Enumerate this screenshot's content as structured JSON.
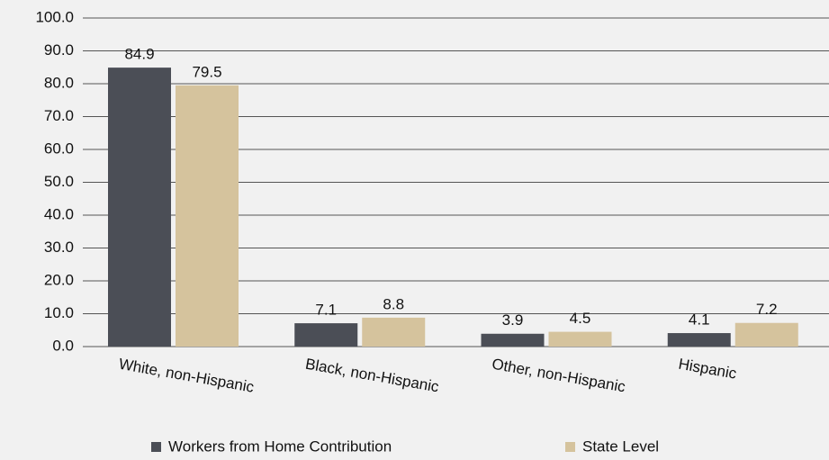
{
  "chart_data": {
    "type": "bar",
    "categories": [
      "White, non-Hispanic",
      "Black, non-Hispanic",
      "Other, non-Hispanic",
      "Hispanic"
    ],
    "series": [
      {
        "name": "Workers from Home Contribution",
        "color": "#4b4e56",
        "values": [
          84.9,
          7.1,
          3.9,
          4.1
        ]
      },
      {
        "name": "State Level",
        "color": "#d5c39d",
        "values": [
          79.5,
          8.8,
          4.5,
          7.2
        ]
      }
    ],
    "ylim": [
      0,
      100
    ],
    "yticks": [
      {
        "value": 0,
        "label": "0.0"
      },
      {
        "value": 10,
        "label": "10.0"
      },
      {
        "value": 20,
        "label": "20.0"
      },
      {
        "value": 30,
        "label": "30.0"
      },
      {
        "value": 40,
        "label": "40.0"
      },
      {
        "value": 50,
        "label": "50.0"
      },
      {
        "value": 60,
        "label": "60.0"
      },
      {
        "value": 70,
        "label": "70.0"
      },
      {
        "value": 80,
        "label": "80.0"
      },
      {
        "value": 90,
        "label": "90.0"
      },
      {
        "value": 100,
        "label": "100.0"
      }
    ],
    "grid": true,
    "legend": "bottom"
  }
}
